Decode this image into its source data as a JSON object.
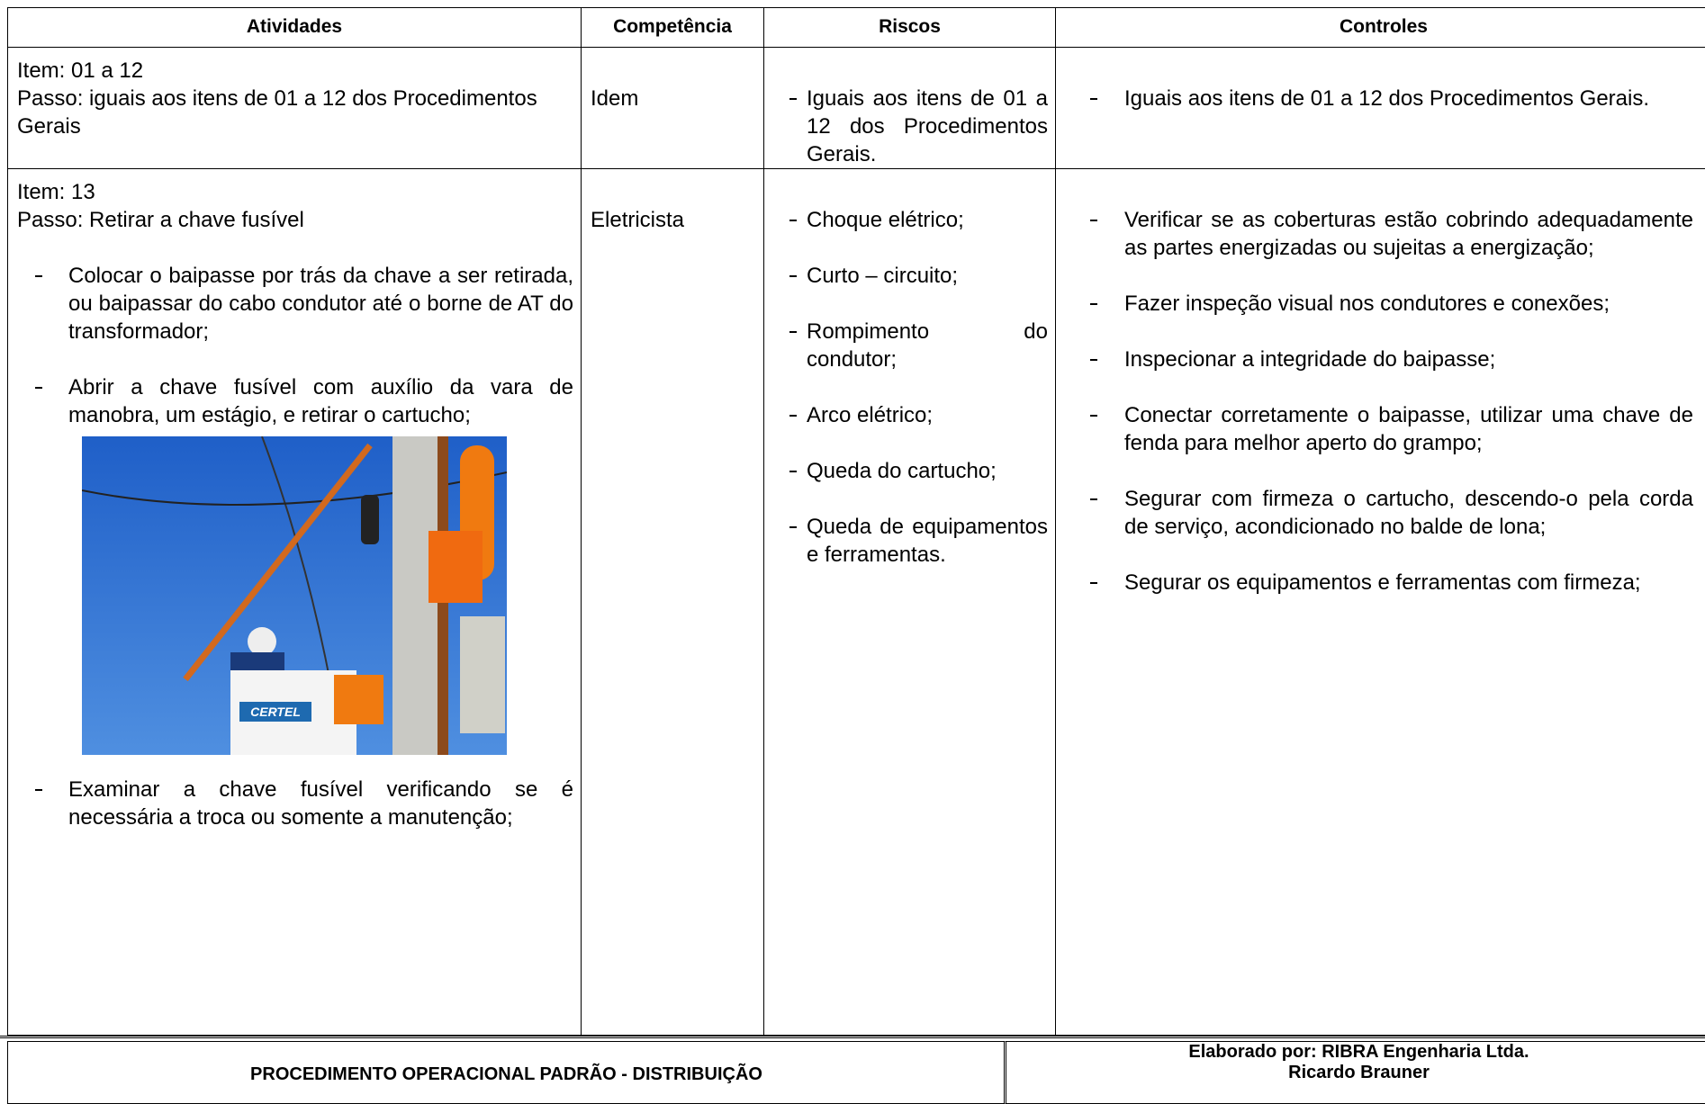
{
  "table": {
    "header": [
      "Atividades",
      "Competência",
      "Riscos",
      "Controles"
    ],
    "rows": [
      {
        "atividades": {
          "item": "Item: 01 a 12",
          "passo": "Passo: iguais aos itens de 01 a 12 dos Procedimentos Gerais",
          "steps": []
        },
        "competencia": "Idem",
        "riscos": [
          "Iguais aos itens de 01 a 12 dos Procedimentos Gerais."
        ],
        "controles": [
          "Iguais aos itens de 01 a 12 dos Procedimentos Gerais."
        ]
      },
      {
        "atividades": {
          "item": "Item: 13",
          "passo": "Passo: Retirar a chave fusível",
          "steps": [
            "Colocar o baipasse por trás da chave a ser retirada, ou baipassar do cabo condutor até o borne de AT do transformador;",
            "Abrir a chave fusível com auxílio da vara de manobra, um estágio, e retirar o cartucho;",
            "Examinar a chave fusível verificando se é necessária a troca ou somente a manutenção;"
          ]
        },
        "competencia": "Eletricista",
        "riscos": [
          "Choque elétrico;",
          "Curto – circuito;",
          "Rompimento do condutor;",
          "Arco elétrico;",
          "Queda do cartucho;",
          "Queda de equipamentos e ferramentas."
        ],
        "controles": [
          "Verificar se as coberturas estão cobrindo adequadamente as partes energizadas ou sujeitas a energização;",
          "Fazer inspeção visual nos condutores e conexões;",
          "Inspecionar a integridade do baipasse;",
          "Conectar corretamente o baipasse, utilizar uma chave de fenda para melhor aperto do grampo;",
          "Segurar com firmeza o cartucho, descendo-o pela corda de serviço, acondicionado no balde de lona;",
          "Segurar os equipamentos e ferramentas com firmeza;"
        ]
      }
    ]
  },
  "photo": {
    "logo_text": "CERTEL"
  },
  "footer": {
    "title": "PROCEDIMENTO OPERACIONAL PADRÃO - DISTRIBUIÇÃO",
    "author_line": "Elaborado por: RIBRA Engenharia Ltda.",
    "author_name": "Ricardo Brauner"
  }
}
